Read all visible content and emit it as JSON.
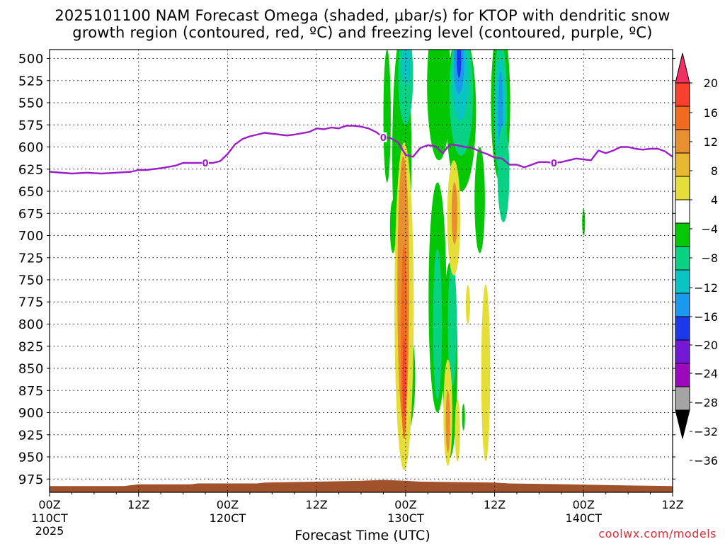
{
  "chart_data": {
    "type": "heatmap",
    "title_line1": "2025101100 NAM Forecast Omega (shaded, μbar/s) for KTOP with dendritic snow",
    "title_line2": "growth region (contoured, red, ºC) and freezing level (contoured, purple, ºC)",
    "xlabel": "Forecast Time (UTC)",
    "credit": "coolwx.com/models",
    "ylabel": "",
    "y_axis": {
      "unit": "hPa",
      "range": [
        490,
        990
      ],
      "ticks": [
        500,
        525,
        550,
        575,
        600,
        625,
        650,
        675,
        700,
        725,
        750,
        775,
        800,
        825,
        850,
        875,
        900,
        925,
        950,
        975
      ]
    },
    "x_axis": {
      "unit": "forecast hours",
      "range": [
        0,
        84
      ],
      "major_ticks": [
        {
          "hour": 0,
          "label": "00Z",
          "date": "110CT",
          "year": "2025"
        },
        {
          "hour": 12,
          "label": "12Z",
          "date": "",
          "year": ""
        },
        {
          "hour": 24,
          "label": "00Z",
          "date": "120CT",
          "year": ""
        },
        {
          "hour": 36,
          "label": "12Z",
          "date": "",
          "year": ""
        },
        {
          "hour": 48,
          "label": "00Z",
          "date": "130CT",
          "year": ""
        },
        {
          "hour": 60,
          "label": "12Z",
          "date": "",
          "year": ""
        },
        {
          "hour": 72,
          "label": "00Z",
          "date": "140CT",
          "year": ""
        },
        {
          "hour": 84,
          "label": "12Z",
          "date": "",
          "year": ""
        }
      ]
    },
    "colorbar": {
      "labels": [
        "20",
        "16",
        "12",
        "8",
        "4",
        "−4",
        "−8",
        "−12",
        "−16",
        "−20",
        "−24",
        "−28",
        "−32",
        "−36"
      ],
      "colors": [
        "#f03060",
        "#f8402c",
        "#f06a20",
        "#e89030",
        "#e8b830",
        "#e6de38",
        "#ffffff",
        "#04c804",
        "#08d284",
        "#08c4c4",
        "#1c98ec",
        "#1c38ec",
        "#7418d8",
        "#9c08bc",
        "#a4a4a4",
        "#000000"
      ]
    },
    "freezing_level": {
      "label": "0",
      "label_points": [
        [
          21,
          618
        ],
        [
          45,
          589
        ],
        [
          68,
          618
        ]
      ],
      "points": [
        [
          0,
          628
        ],
        [
          3,
          630
        ],
        [
          5,
          629
        ],
        [
          7,
          630
        ],
        [
          9,
          629
        ],
        [
          11,
          628
        ],
        [
          12,
          626
        ],
        [
          13,
          626
        ],
        [
          15,
          624
        ],
        [
          17,
          621
        ],
        [
          18,
          618
        ],
        [
          20,
          618
        ],
        [
          21,
          618
        ],
        [
          22,
          618
        ],
        [
          23,
          616
        ],
        [
          24,
          608
        ],
        [
          25,
          597
        ],
        [
          26,
          591
        ],
        [
          27,
          588
        ],
        [
          28,
          586
        ],
        [
          29,
          584
        ],
        [
          30,
          585
        ],
        [
          31,
          586
        ],
        [
          32,
          587
        ],
        [
          33,
          586
        ],
        [
          35,
          583
        ],
        [
          36,
          579
        ],
        [
          37,
          580
        ],
        [
          38,
          578
        ],
        [
          39,
          579
        ],
        [
          40,
          576
        ],
        [
          41,
          576
        ],
        [
          42,
          577
        ],
        [
          43,
          579
        ],
        [
          44,
          583
        ],
        [
          45,
          589
        ],
        [
          46,
          590
        ],
        [
          47,
          595
        ],
        [
          48,
          609
        ],
        [
          49,
          611
        ],
        [
          50,
          601
        ],
        [
          51,
          598
        ],
        [
          52,
          599
        ],
        [
          53,
          607
        ],
        [
          54,
          597
        ],
        [
          55,
          598
        ],
        [
          56,
          600
        ],
        [
          57,
          601
        ],
        [
          58,
          605
        ],
        [
          59,
          608
        ],
        [
          60,
          612
        ],
        [
          61,
          613
        ],
        [
          62,
          620
        ],
        [
          63,
          620
        ],
        [
          64,
          623
        ],
        [
          65,
          620
        ],
        [
          66,
          617
        ],
        [
          67,
          617
        ],
        [
          68,
          618
        ],
        [
          69,
          617
        ],
        [
          70,
          615
        ],
        [
          71,
          613
        ],
        [
          72,
          614
        ],
        [
          73,
          615
        ],
        [
          74,
          604
        ],
        [
          75,
          607
        ],
        [
          76,
          604
        ],
        [
          77,
          600
        ],
        [
          78,
          600
        ],
        [
          79,
          602
        ],
        [
          80,
          603
        ],
        [
          81,
          602
        ],
        [
          82,
          602
        ],
        [
          83,
          605
        ],
        [
          84,
          611
        ]
      ]
    },
    "omega_regions": [
      {
        "value": -6,
        "x": 45.5,
        "y": 565,
        "rx": 0.5,
        "ry": 75
      },
      {
        "value": -6,
        "x": 47.5,
        "y": 610,
        "rx": 1.3,
        "ry": 140
      },
      {
        "value": -6,
        "x": 48.0,
        "y": 860,
        "rx": 1.3,
        "ry": 65
      },
      {
        "value": -10,
        "x": 48.0,
        "y": 520,
        "rx": 1.0,
        "ry": 55
      },
      {
        "value": -14,
        "x": 48.1,
        "y": 505,
        "rx": 0.6,
        "ry": 25
      },
      {
        "value": -6,
        "x": 46.3,
        "y": 690,
        "rx": 0.4,
        "ry": 30
      },
      {
        "value": -6,
        "x": 52.5,
        "y": 530,
        "rx": 1.6,
        "ry": 85
      },
      {
        "value": -6,
        "x": 55.5,
        "y": 560,
        "rx": 2.0,
        "ry": 90
      },
      {
        "value": -10,
        "x": 55.5,
        "y": 540,
        "rx": 1.6,
        "ry": 70
      },
      {
        "value": -14,
        "x": 55.4,
        "y": 520,
        "rx": 1.1,
        "ry": 50
      },
      {
        "value": -18,
        "x": 55.2,
        "y": 505,
        "rx": 0.7,
        "ry": 35
      },
      {
        "value": -22,
        "x": 55.2,
        "y": 500,
        "rx": 0.3,
        "ry": 22
      },
      {
        "value": -6,
        "x": 52.3,
        "y": 770,
        "rx": 1.2,
        "ry": 130
      },
      {
        "value": -10,
        "x": 52.3,
        "y": 800,
        "rx": 0.6,
        "ry": 85
      },
      {
        "value": -6,
        "x": 54.0,
        "y": 840,
        "rx": 1.0,
        "ry": 110
      },
      {
        "value": -10,
        "x": 54.3,
        "y": 800,
        "rx": 0.6,
        "ry": 70
      },
      {
        "value": -6,
        "x": 60.8,
        "y": 550,
        "rx": 1.3,
        "ry": 90
      },
      {
        "value": -10,
        "x": 60.8,
        "y": 555,
        "rx": 0.9,
        "ry": 75
      },
      {
        "value": -14,
        "x": 60.8,
        "y": 560,
        "rx": 0.6,
        "ry": 60
      },
      {
        "value": -18,
        "x": 60.8,
        "y": 560,
        "rx": 0.3,
        "ry": 45
      },
      {
        "value": -6,
        "x": 58.0,
        "y": 660,
        "rx": 0.7,
        "ry": 60
      },
      {
        "value": -10,
        "x": 61.2,
        "y": 630,
        "rx": 0.8,
        "ry": 55
      },
      {
        "value": -6,
        "x": 72.0,
        "y": 685,
        "rx": 0.2,
        "ry": 15
      },
      {
        "value": -6,
        "x": 55.8,
        "y": 905,
        "rx": 0.2,
        "ry": 15
      },
      {
        "value": 6,
        "x": 47.8,
        "y": 780,
        "rx": 1.3,
        "ry": 185
      },
      {
        "value": 10,
        "x": 47.7,
        "y": 760,
        "rx": 0.8,
        "ry": 150
      },
      {
        "value": 14,
        "x": 47.8,
        "y": 820,
        "rx": 0.45,
        "ry": 110
      },
      {
        "value": 18,
        "x": 47.8,
        "y": 860,
        "rx": 0.2,
        "ry": 45
      },
      {
        "value": 6,
        "x": 53.7,
        "y": 900,
        "rx": 0.6,
        "ry": 60
      },
      {
        "value": 10,
        "x": 53.7,
        "y": 910,
        "rx": 0.3,
        "ry": 35
      },
      {
        "value": 6,
        "x": 54.5,
        "y": 680,
        "rx": 0.9,
        "ry": 65
      },
      {
        "value": 10,
        "x": 54.6,
        "y": 675,
        "rx": 0.4,
        "ry": 35
      },
      {
        "value": 6,
        "x": 58.8,
        "y": 855,
        "rx": 0.6,
        "ry": 100
      },
      {
        "value": 6,
        "x": 56.4,
        "y": 778,
        "rx": 0.3,
        "ry": 22
      },
      {
        "value": 6,
        "x": 55.0,
        "y": 920,
        "rx": 0.35,
        "ry": 35
      }
    ],
    "terrain": [
      [
        0,
        983
      ],
      [
        10,
        983
      ],
      [
        12,
        981
      ],
      [
        19,
        981
      ],
      [
        20,
        980
      ],
      [
        28,
        980
      ],
      [
        29,
        979
      ],
      [
        42,
        977
      ],
      [
        45,
        976
      ],
      [
        48,
        977
      ],
      [
        50,
        978
      ],
      [
        60,
        979
      ],
      [
        62,
        980
      ],
      [
        70,
        981
      ],
      [
        76,
        982
      ],
      [
        84,
        983
      ]
    ]
  }
}
